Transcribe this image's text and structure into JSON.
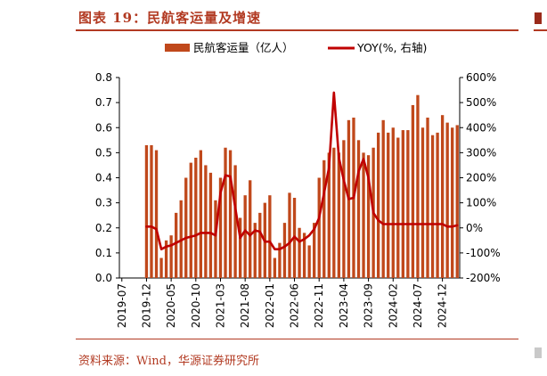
{
  "header": {
    "title": "图表 19：民航客运量及增速"
  },
  "footer": {
    "source": "资料来源：Wind，华源证券研究所"
  },
  "chart_data": {
    "type": "bar+line",
    "title": "图表 19：民航客运量及增速",
    "legend": {
      "placement": "top",
      "bar_label": "民航客运量（亿人）",
      "line_label": "YOY(%, 右轴)"
    },
    "colors": {
      "bar": "#c0481b",
      "line": "#c00000",
      "accent": "#b23a22"
    },
    "x_tick_labels": [
      "2019-07",
      "2019-12",
      "2020-05",
      "2020-10",
      "2021-03",
      "2021-08",
      "2022-01",
      "2022-06",
      "2022-11",
      "2023-04",
      "2023-09",
      "2024-02",
      "2024-07",
      "2024-12"
    ],
    "left_axis": {
      "ylim": [
        0,
        0.8
      ],
      "ticks": [
        "0.0",
        "0.1",
        "0.2",
        "0.3",
        "0.4",
        "0.5",
        "0.6",
        "0.7",
        "0.8"
      ]
    },
    "right_axis": {
      "ylim": [
        -200,
        600
      ],
      "ticks": [
        "-200%",
        "-100%",
        "0%",
        "100%",
        "200%",
        "300%",
        "400%",
        "500%",
        "600%"
      ]
    },
    "series": [
      {
        "name": "民航客运量（亿人）",
        "kind": "bar",
        "axis": "left",
        "values": [
          null,
          null,
          null,
          null,
          null,
          0.53,
          0.53,
          0.51,
          0.08,
          0.15,
          0.17,
          0.26,
          0.31,
          0.4,
          0.46,
          0.48,
          0.51,
          0.45,
          0.42,
          0.31,
          0.4,
          0.52,
          0.51,
          0.45,
          0.24,
          0.33,
          0.39,
          0.22,
          0.26,
          0.3,
          0.33,
          0.08,
          0.14,
          0.22,
          0.34,
          0.32,
          0.2,
          0.18,
          0.13,
          0.22,
          0.4,
          0.47,
          0.5,
          0.52,
          0.5,
          0.55,
          0.63,
          0.64,
          0.55,
          0.5,
          0.49,
          0.52,
          0.58,
          0.63,
          0.58,
          0.6,
          0.56,
          0.59,
          0.59,
          0.69,
          0.73,
          0.6,
          0.64,
          0.57,
          0.58,
          0.65,
          0.62,
          0.6,
          0.61
        ]
      },
      {
        "name": "YOY(%, 右轴)",
        "kind": "line",
        "axis": "right",
        "values": [
          null,
          null,
          null,
          null,
          null,
          5,
          5,
          -5,
          -85,
          -75,
          -70,
          -60,
          -50,
          -40,
          -35,
          -30,
          -20,
          -20,
          -20,
          -30,
          140,
          210,
          205,
          80,
          -40,
          -10,
          -30,
          -10,
          -15,
          -55,
          -55,
          -85,
          -85,
          -75,
          -60,
          -35,
          -55,
          -45,
          -30,
          -5,
          40,
          140,
          240,
          540,
          280,
          190,
          115,
          120,
          225,
          275,
          200,
          60,
          30,
          15,
          15,
          15,
          15,
          15,
          15,
          15,
          15,
          15,
          15,
          15,
          15,
          15,
          5,
          5,
          10
        ]
      }
    ]
  }
}
